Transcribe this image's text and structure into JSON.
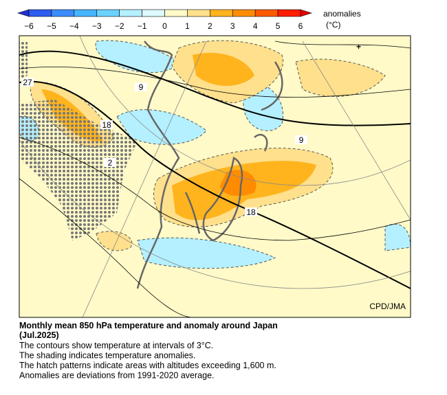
{
  "colorbar": {
    "label": "anomalies",
    "unit": "(°C)",
    "ticks": [
      "−6",
      "−5",
      "−4",
      "−3",
      "−2",
      "−1",
      "0",
      "1",
      "2",
      "3",
      "4",
      "5",
      "6"
    ],
    "colors": [
      "#1e32d2",
      "#2e5cf0",
      "#3c8cff",
      "#46b4ff",
      "#6ad2ff",
      "#b4f0ff",
      "#dcfaff",
      "#fffac8",
      "#ffe08c",
      "#ffb41e",
      "#ff8c00",
      "#ff5a00",
      "#ff1e00",
      "#e60000"
    ]
  },
  "map": {
    "credit": "CPD/JMA",
    "contour_labels": [
      "27",
      "9",
      "18",
      "2",
      "9",
      "18"
    ]
  },
  "caption": {
    "title": "Monthly mean 850 hPa temperature and anomaly around Japan",
    "subtitle": "(Jul.2025)",
    "lines": [
      "The contours show temperature at intervals of 3°C.",
      "The shading indicates temperature anomalies.",
      "The hatch patterns indicate areas with altitudes exceeding 1,600 m.",
      "Anomalies are deviations from 1991-2020 average."
    ]
  }
}
